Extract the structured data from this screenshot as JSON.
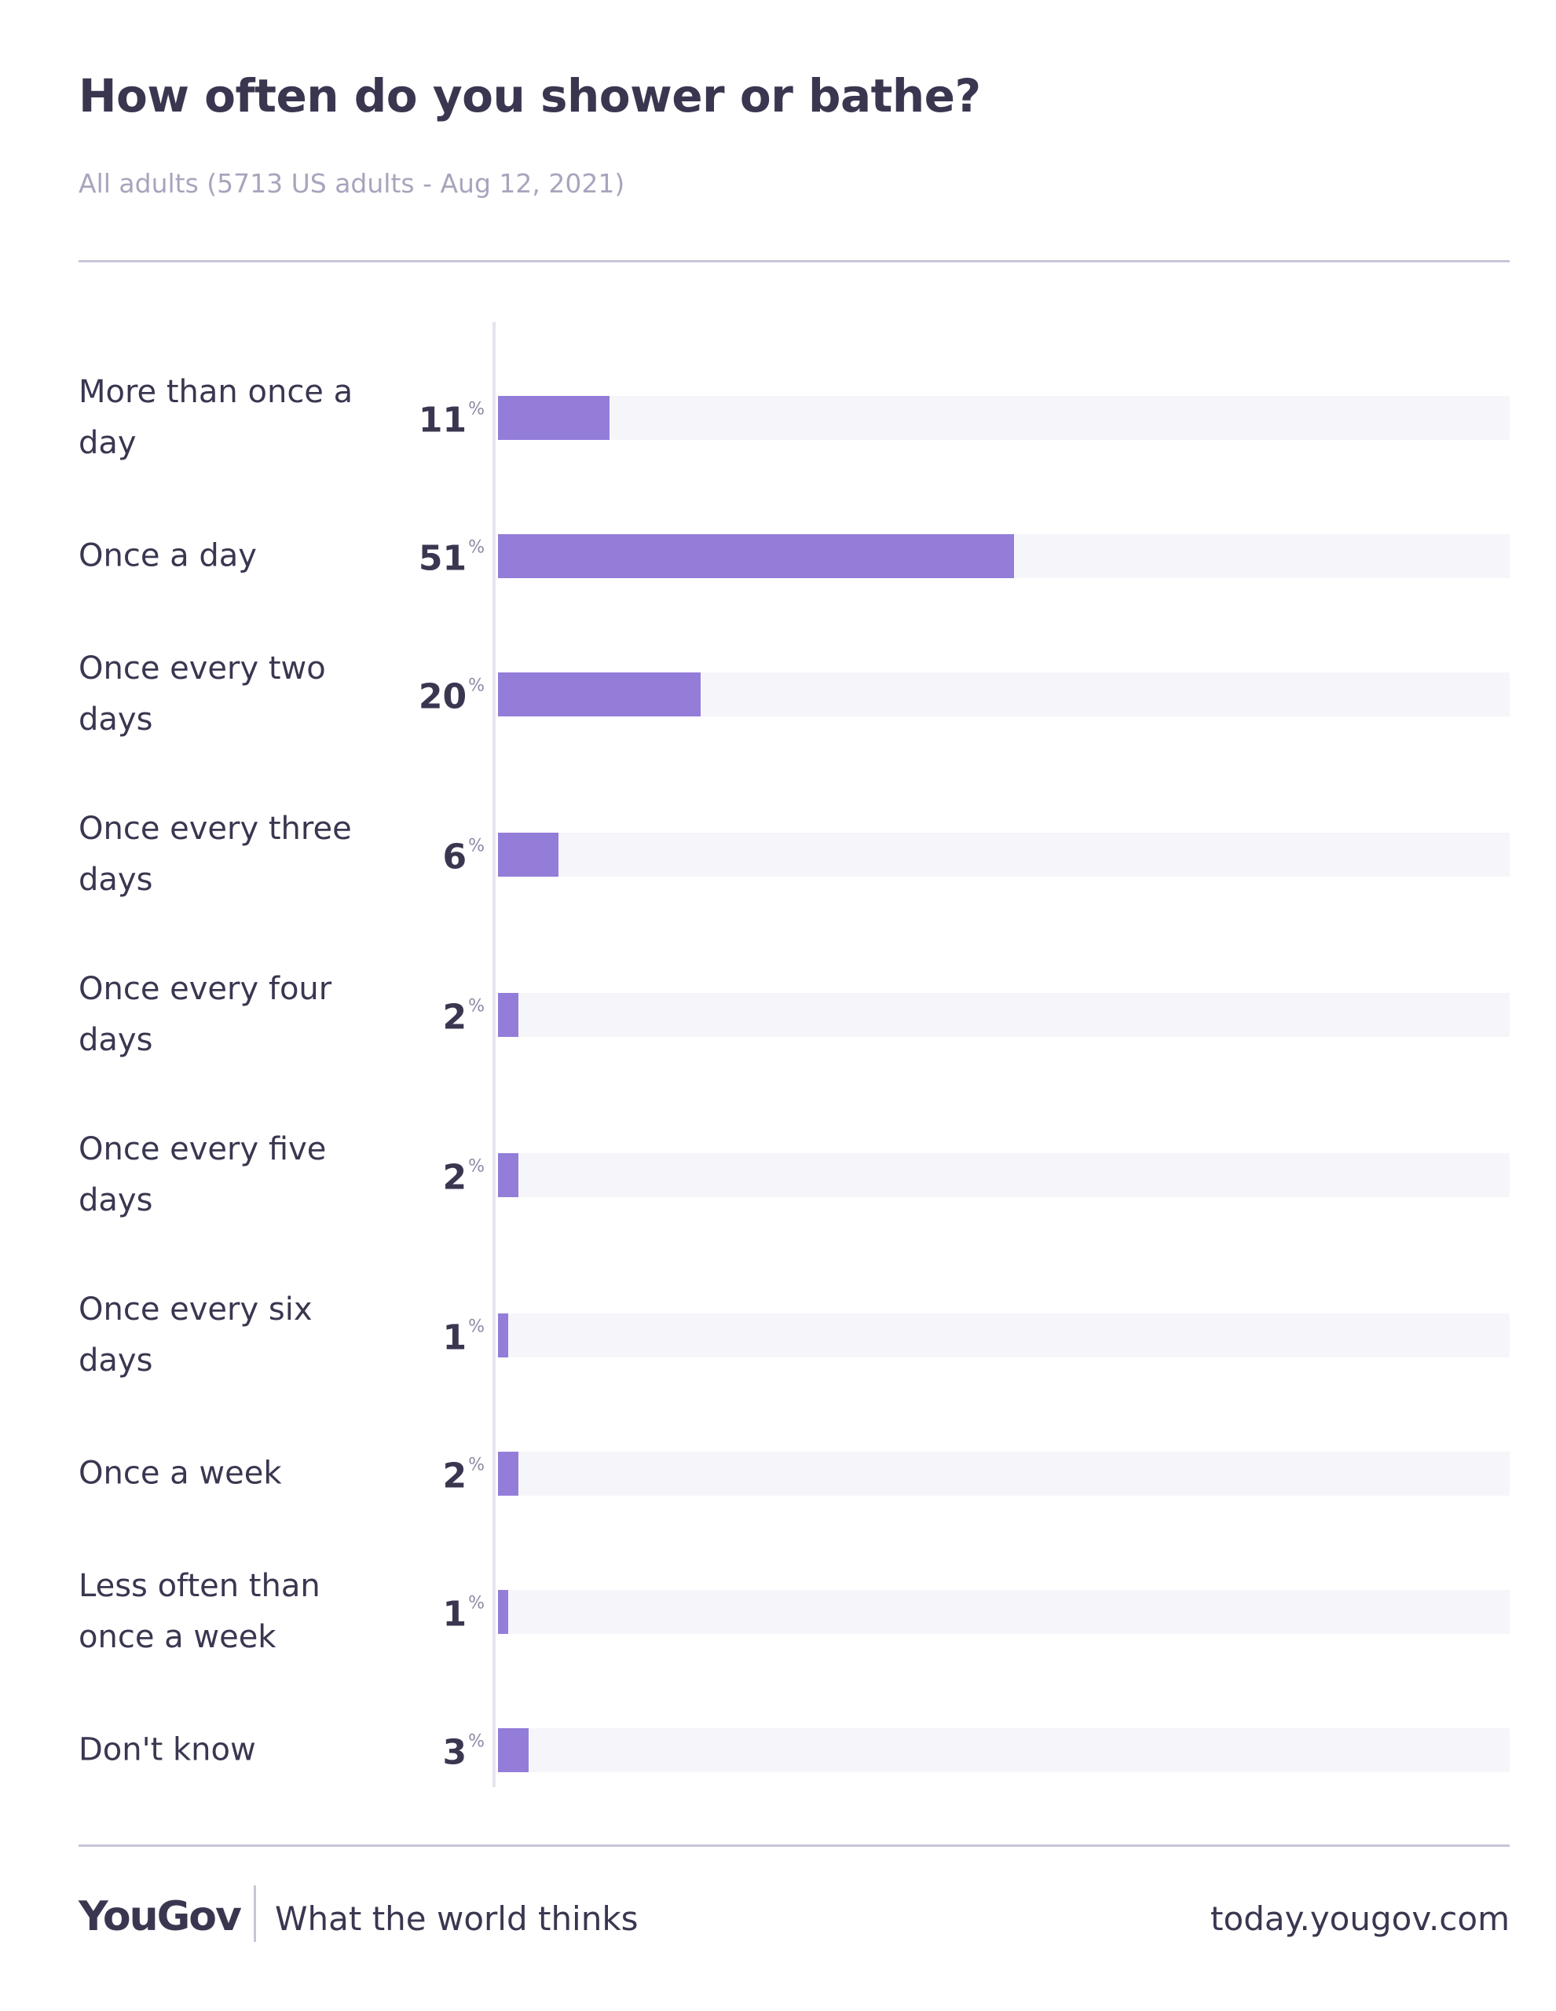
{
  "header": {
    "title": "How often do you shower or bathe?",
    "subtitle": "All adults (5713 US adults - Aug 12, 2021)"
  },
  "colors": {
    "bar": "#937dd9",
    "track": "#f6f5fa",
    "text": "#3b3650"
  },
  "chart_data": {
    "type": "bar",
    "orientation": "horizontal",
    "categories": [
      "More than once a day",
      "Once a day",
      "Once every two days",
      "Once every three days",
      "Once every four days",
      "Once every five days",
      "Once every six days",
      "Once a week",
      "Less often than once a week",
      "Don't know"
    ],
    "values": [
      11,
      51,
      20,
      6,
      2,
      2,
      1,
      2,
      1,
      3
    ],
    "value_suffix": "%",
    "xlim": [
      0,
      100
    ],
    "grid": false,
    "legend": "none"
  },
  "footer": {
    "logo": "YouGov",
    "tagline": "What the world thinks",
    "url": "today.yougov.com"
  }
}
